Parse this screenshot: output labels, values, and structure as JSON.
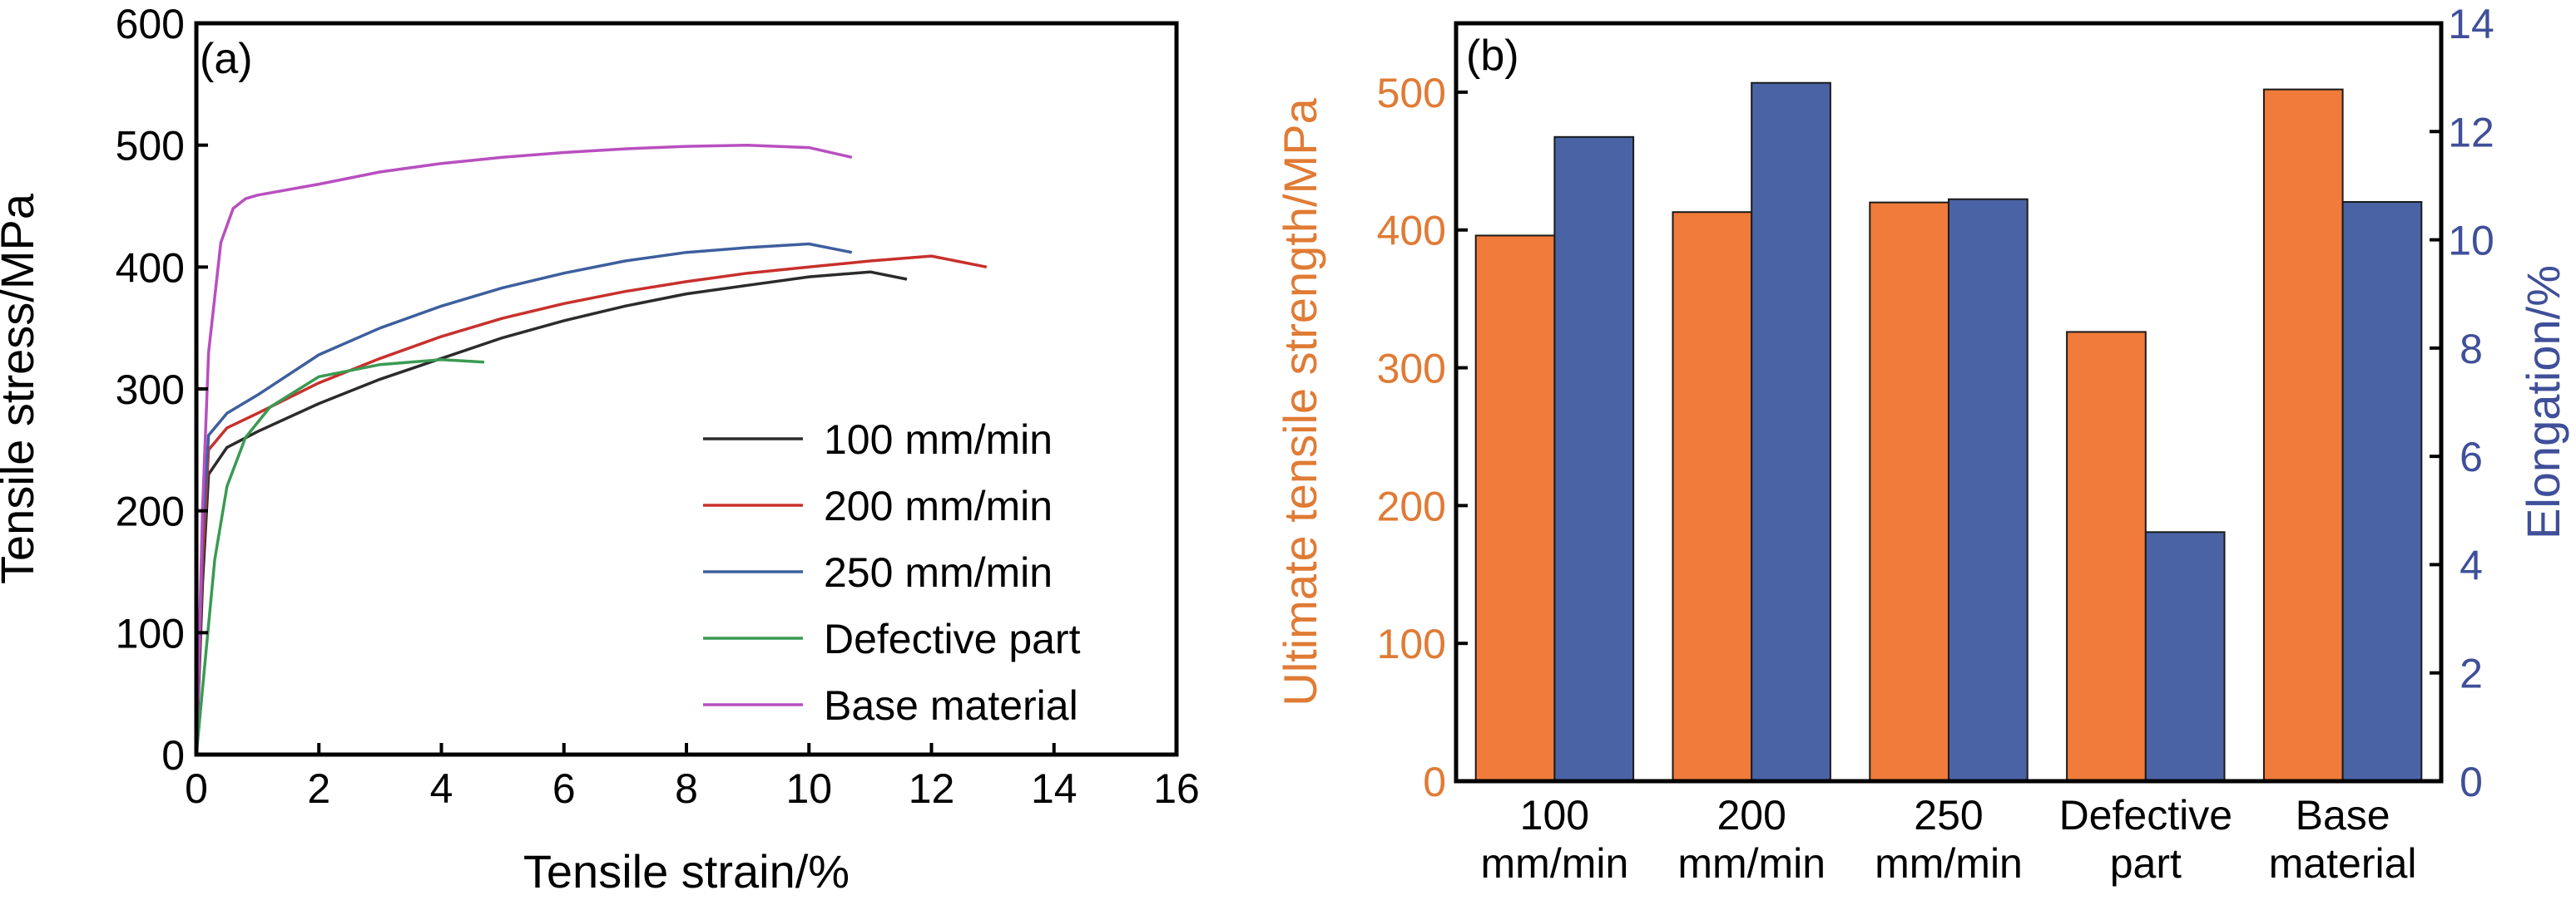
{
  "chart_data": [
    {
      "panel_label": "(a)",
      "type": "line",
      "xlabel": "Tensile strain/%",
      "ylabel": "Tensile stress/MPa",
      "xlim": [
        0,
        16
      ],
      "ylim": [
        0,
        600
      ],
      "xticks": [
        "0",
        "2",
        "4",
        "6",
        "8",
        "10",
        "12",
        "14",
        "16"
      ],
      "yticks": [
        "0",
        "100",
        "200",
        "300",
        "400",
        "500",
        "600"
      ],
      "grid": false,
      "legend_position": "bottom-right",
      "series": [
        {
          "name": "100 mm/min",
          "color": "#2b2b2b",
          "x": [
            0,
            0.1,
            0.2,
            0.5,
            1,
            2,
            3,
            4,
            5,
            6,
            7,
            8,
            9,
            10,
            11,
            11.6
          ],
          "y": [
            0,
            140,
            230,
            252,
            265,
            288,
            308,
            325,
            342,
            356,
            368,
            378,
            385,
            392,
            396,
            390
          ]
        },
        {
          "name": "200 mm/min",
          "color": "#c8302c",
          "x": [
            0,
            0.1,
            0.2,
            0.5,
            1,
            2,
            3,
            4,
            5,
            6,
            7,
            8,
            9,
            10,
            11,
            12,
            12.9
          ],
          "y": [
            0,
            160,
            250,
            268,
            280,
            305,
            325,
            343,
            358,
            370,
            380,
            388,
            395,
            400,
            405,
            409,
            400
          ]
        },
        {
          "name": "250 mm/min",
          "color": "#3d5f9e",
          "x": [
            0,
            0.1,
            0.2,
            0.5,
            1,
            2,
            3,
            4,
            5,
            6,
            7,
            8,
            9,
            10,
            10.7
          ],
          "y": [
            0,
            180,
            262,
            280,
            295,
            328,
            350,
            368,
            383,
            395,
            405,
            412,
            416,
            419,
            412
          ]
        },
        {
          "name": "Defective part",
          "color": "#3a9a53",
          "x": [
            0,
            0.15,
            0.3,
            0.5,
            0.8,
            1.2,
            2,
            3,
            4,
            4.7
          ],
          "y": [
            0,
            80,
            160,
            220,
            260,
            285,
            310,
            320,
            324,
            322
          ]
        },
        {
          "name": "Base material",
          "color": "#b84fc0",
          "x": [
            0,
            0.1,
            0.2,
            0.4,
            0.6,
            0.8,
            1,
            2,
            3,
            4,
            5,
            6,
            7,
            8,
            9,
            10,
            10.7
          ],
          "y": [
            0,
            200,
            330,
            420,
            448,
            456,
            459,
            468,
            478,
            485,
            490,
            494,
            497,
            499,
            500,
            498,
            490
          ]
        }
      ]
    },
    {
      "panel_label": "(b)",
      "type": "bar",
      "categories": [
        [
          "100",
          "mm/min"
        ],
        [
          "200",
          "mm/min"
        ],
        [
          "250",
          "mm/min"
        ],
        [
          "Defective",
          "part"
        ],
        [
          "Base",
          "material"
        ]
      ],
      "ylabel": "Ultimate tensile strength/MPa",
      "ylabel_color": "#e07b35",
      "ylim": [
        0,
        550
      ],
      "yticks": [
        "0",
        "100",
        "200",
        "300",
        "400",
        "500"
      ],
      "y2label": "Elongation/%",
      "y2label_color": "#3f4f99",
      "y2lim": [
        0,
        14
      ],
      "y2ticks": [
        "0",
        "2",
        "4",
        "6",
        "8",
        "10",
        "12",
        "14"
      ],
      "grid": false,
      "series": [
        {
          "name": "Ultimate tensile strength",
          "axis": "left",
          "color": "#f07b3a",
          "values": [
            396,
            413,
            420,
            326,
            502
          ]
        },
        {
          "name": "Elongation",
          "axis": "right",
          "color": "#4a63a5",
          "values": [
            11.9,
            12.9,
            10.75,
            4.6,
            10.7
          ]
        }
      ]
    }
  ]
}
